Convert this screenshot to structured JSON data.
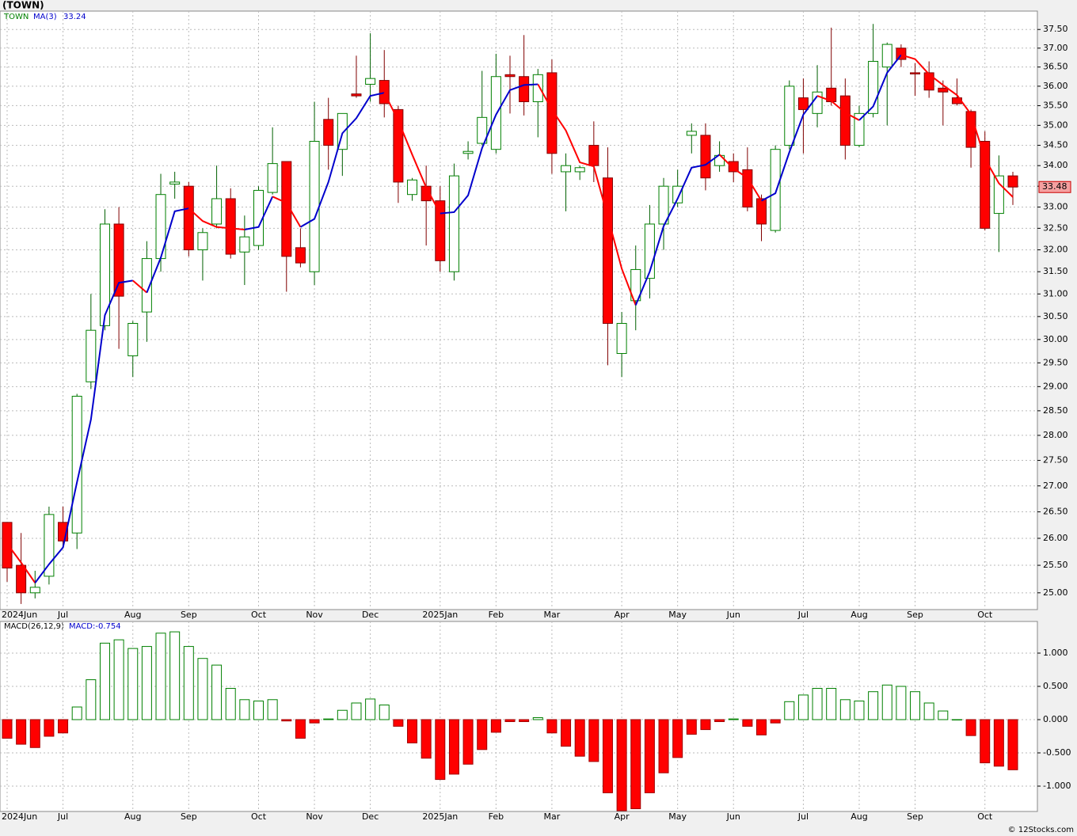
{
  "chart_data": [
    {
      "type": "candlestick",
      "title": "(TOWN)",
      "symbol": "TOWN",
      "log": true,
      "grid": true,
      "up_color": "#008000",
      "down_color": "#ff0000",
      "categories": [
        "2024Jun",
        null,
        null,
        null,
        "Jul",
        null,
        null,
        null,
        null,
        "Aug",
        null,
        null,
        null,
        "Sep",
        null,
        null,
        null,
        null,
        "Oct",
        null,
        null,
        null,
        "Nov",
        null,
        null,
        null,
        "Dec",
        null,
        null,
        null,
        null,
        "2025Jan",
        null,
        null,
        null,
        "Feb",
        null,
        null,
        null,
        "Mar",
        null,
        null,
        null,
        null,
        "Apr",
        null,
        null,
        null,
        "May",
        null,
        null,
        null,
        "Jun",
        null,
        null,
        null,
        null,
        "Jul",
        null,
        null,
        null,
        "Aug",
        null,
        null,
        null,
        "Sep",
        null,
        null,
        null,
        null,
        "Oct",
        null,
        null
      ],
      "open": [
        26.3,
        25.5,
        25.0,
        25.3,
        26.3,
        26.1,
        29.1,
        30.3,
        32.6,
        29.65,
        30.6,
        31.8,
        33.55,
        33.5,
        32.0,
        32.6,
        33.2,
        31.95,
        32.1,
        33.35,
        34.1,
        32.05,
        31.5,
        35.15,
        34.4,
        35.8,
        36.05,
        36.15,
        35.4,
        33.3,
        33.5,
        33.15,
        31.5,
        34.3,
        34.55,
        34.4,
        36.3,
        36.25,
        35.6,
        36.35,
        33.85,
        33.85,
        34.5,
        33.7,
        29.7,
        30.85,
        31.35,
        32.6,
        33.1,
        34.75,
        34.75,
        34.0,
        34.1,
        33.9,
        33.2,
        32.45,
        34.5,
        35.7,
        35.3,
        35.95,
        35.75,
        34.5,
        35.3,
        36.5,
        37.0,
        36.35,
        36.35,
        35.95,
        35.7,
        35.35,
        34.6,
        32.85,
        33.75
      ],
      "high": [
        26.3,
        26.1,
        25.4,
        26.6,
        26.6,
        28.85,
        31.0,
        32.95,
        33.0,
        30.4,
        32.2,
        33.8,
        33.85,
        33.6,
        32.5,
        34.0,
        33.45,
        32.8,
        33.5,
        34.95,
        34.1,
        32.5,
        35.6,
        35.7,
        35.3,
        36.8,
        37.4,
        36.95,
        35.5,
        33.7,
        34.0,
        33.5,
        34.05,
        34.6,
        36.4,
        36.85,
        36.8,
        37.35,
        36.45,
        36.7,
        34.3,
        34.0,
        35.1,
        34.45,
        30.6,
        32.1,
        33.05,
        33.7,
        33.9,
        35.05,
        35.05,
        34.6,
        34.3,
        34.45,
        33.3,
        34.5,
        36.15,
        36.2,
        36.55,
        37.55,
        36.2,
        35.5,
        37.65,
        37.15,
        37.1,
        36.6,
        36.65,
        36.15,
        36.2,
        35.4,
        34.85,
        34.25,
        33.85
      ],
      "low": [
        25.2,
        24.8,
        24.9,
        25.15,
        25.85,
        25.8,
        28.95,
        30.2,
        29.8,
        29.2,
        29.95,
        31.5,
        33.2,
        31.85,
        31.3,
        32.5,
        31.8,
        31.2,
        32.0,
        33.3,
        31.05,
        31.6,
        31.2,
        33.9,
        33.75,
        35.7,
        35.6,
        35.2,
        33.1,
        33.15,
        32.1,
        31.5,
        31.3,
        34.15,
        34.5,
        34.3,
        35.3,
        35.25,
        34.7,
        33.8,
        32.9,
        33.65,
        33.6,
        29.45,
        29.2,
        30.2,
        30.9,
        32.0,
        33.0,
        34.3,
        33.4,
        33.85,
        33.6,
        32.9,
        32.2,
        32.4,
        34.4,
        34.3,
        34.95,
        35.5,
        34.15,
        34.45,
        35.2,
        35.0,
        36.5,
        35.75,
        35.7,
        35.0,
        35.5,
        33.95,
        32.45,
        31.95,
        33.05
      ],
      "close": [
        25.45,
        25.0,
        25.1,
        26.45,
        25.95,
        28.8,
        30.2,
        32.6,
        30.95,
        30.35,
        31.8,
        33.3,
        33.6,
        32.0,
        32.4,
        33.2,
        31.9,
        32.3,
        33.4,
        34.05,
        31.85,
        31.7,
        34.6,
        34.5,
        35.3,
        35.75,
        36.2,
        35.55,
        33.6,
        33.65,
        33.15,
        31.75,
        33.75,
        34.35,
        35.2,
        36.25,
        36.25,
        35.6,
        36.3,
        34.3,
        34.0,
        33.95,
        34.0,
        30.35,
        30.35,
        31.55,
        32.6,
        33.5,
        33.5,
        34.85,
        33.7,
        34.25,
        33.85,
        33.0,
        32.6,
        34.4,
        36.0,
        35.4,
        35.85,
        35.6,
        34.5,
        35.3,
        36.65,
        37.1,
        36.7,
        36.33,
        35.9,
        35.85,
        35.55,
        34.45,
        32.5,
        33.75,
        33.48
      ],
      "ma": {
        "name": "MA(3)",
        "up_color": "#0000cc",
        "down_color": "#ff0000",
        "values": [
          25.9,
          25.55,
          25.18,
          25.52,
          25.83,
          27.07,
          28.32,
          30.53,
          31.25,
          31.3,
          31.03,
          31.82,
          32.9,
          32.97,
          32.67,
          32.53,
          32.5,
          32.47,
          32.53,
          33.25,
          33.1,
          32.53,
          32.72,
          33.6,
          34.8,
          35.18,
          35.75,
          35.83,
          35.12,
          34.27,
          33.47,
          32.85,
          32.88,
          33.28,
          34.43,
          35.27,
          35.9,
          36.03,
          36.05,
          35.4,
          34.87,
          34.08,
          33.98,
          32.77,
          31.57,
          30.75,
          31.5,
          32.55,
          33.2,
          33.95,
          34.02,
          34.27,
          33.93,
          33.7,
          33.15,
          33.33,
          34.33,
          35.27,
          35.75,
          35.62,
          35.32,
          35.13,
          35.48,
          36.35,
          36.82,
          36.71,
          36.31,
          36.03,
          35.77,
          35.28,
          34.17,
          33.57,
          33.24
        ]
      },
      "ylim": [
        24.7,
        38.0
      ],
      "yticks": [
        {
          "value": 25,
          "label": "25.00"
        },
        {
          "value": 25.5,
          "label": "25.50"
        },
        {
          "value": 26,
          "label": "26.00"
        },
        {
          "value": 26.5,
          "label": "26.50"
        },
        {
          "value": 27,
          "label": "27.00"
        },
        {
          "value": 27.5,
          "label": "27.50"
        },
        {
          "value": 28,
          "label": "28.00"
        },
        {
          "value": 28.5,
          "label": "28.50"
        },
        {
          "value": 29,
          "label": "29.00"
        },
        {
          "value": 29.5,
          "label": "29.50"
        },
        {
          "value": 30,
          "label": "30.00"
        },
        {
          "value": 30.5,
          "label": "30.50"
        },
        {
          "value": 31,
          "label": "31.00"
        },
        {
          "value": 31.5,
          "label": "31.50"
        },
        {
          "value": 32,
          "label": "32.00"
        },
        {
          "value": 32.5,
          "label": "32.50"
        },
        {
          "value": 33,
          "label": "33.00"
        },
        {
          "value": 33.5,
          "label": "33.50"
        },
        {
          "value": 34,
          "label": "34.00"
        },
        {
          "value": 34.5,
          "label": "34.50"
        },
        {
          "value": 35,
          "label": "35.00"
        },
        {
          "value": 35.5,
          "label": "35.50"
        },
        {
          "value": 36,
          "label": "36.00"
        },
        {
          "value": 36.5,
          "label": "36.50"
        },
        {
          "value": 37,
          "label": "37.00"
        },
        {
          "value": 37.5,
          "label": "37.50"
        }
      ]
    },
    {
      "type": "bar",
      "name": "MACD(26,12,9)",
      "legend": "MACD:-0.754",
      "grid": true,
      "up_color": "#008000",
      "down_color": "#ff0000",
      "values": [
        -0.28,
        -0.37,
        -0.42,
        -0.25,
        -0.2,
        0.19,
        0.6,
        1.15,
        1.2,
        1.07,
        1.1,
        1.3,
        1.32,
        1.1,
        0.92,
        0.82,
        0.47,
        0.3,
        0.28,
        0.3,
        -0.02,
        -0.28,
        -0.05,
        0.01,
        0.14,
        0.25,
        0.31,
        0.22,
        -0.1,
        -0.35,
        -0.58,
        -0.9,
        -0.82,
        -0.67,
        -0.45,
        -0.19,
        -0.03,
        -0.03,
        0.03,
        -0.2,
        -0.4,
        -0.55,
        -0.63,
        -1.1,
        -1.37,
        -1.34,
        -1.1,
        -0.8,
        -0.57,
        -0.22,
        -0.15,
        -0.03,
        0.01,
        -0.1,
        -0.23,
        -0.05,
        0.27,
        0.37,
        0.47,
        0.47,
        0.3,
        0.28,
        0.42,
        0.52,
        0.5,
        0.42,
        0.25,
        0.13,
        0.0,
        -0.24,
        -0.65,
        -0.7,
        -0.754
      ],
      "ylim": [
        -1.381,
        1.476
      ],
      "yticks": [
        {
          "value": 1,
          "label": "1.000"
        },
        {
          "value": 0.5,
          "label": "0.500"
        },
        {
          "value": 0,
          "label": "0.000"
        },
        {
          "value": -0.5,
          "label": "-0.500"
        },
        {
          "value": -1,
          "label": "-1.000"
        }
      ]
    }
  ],
  "footer": "© 12Stocks.com"
}
